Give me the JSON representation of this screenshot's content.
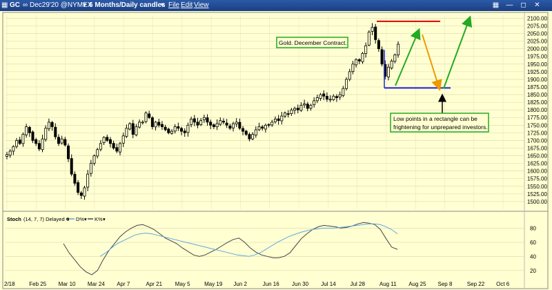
{
  "window": {
    "symbol": "GC",
    "infinity": "∞",
    "contract": "Dec29'20 @NYMEX",
    "period": "6 Months/Daily candles",
    "menu": [
      "File",
      "Edit",
      "View"
    ],
    "icons": [
      "chart-icon",
      "minimize-icon",
      "maximize-icon",
      "close-icon"
    ]
  },
  "colors": {
    "background": "#ffffd2",
    "candle": "#000000",
    "resistance": "#e00000",
    "support": "#2020e0",
    "green_arrow": "#22aa22",
    "orange_arrow": "#ee9900",
    "stoch_k": "#444444",
    "stoch_d": "#5aa7e0",
    "annotation_border": "#22aa22"
  },
  "chart_data": [
    {
      "type": "candlestick",
      "ylim": [
        1475,
        2110
      ],
      "yticks": [
        1500,
        1525,
        1550,
        1575,
        1600,
        1625,
        1650,
        1675,
        1700,
        1725,
        1750,
        1775,
        1800,
        1825,
        1850,
        1875,
        1900,
        1925,
        1950,
        1975,
        2000,
        2025,
        2050,
        2075,
        2100
      ],
      "ytick_labels": [
        "1500.00",
        "1525.00",
        "1550.00",
        "1575.00",
        "1600.00",
        "1625.00",
        "1650.00",
        "1675.00",
        "1700.00",
        "1725.00",
        "1750.00",
        "1775.00",
        "1800.00",
        "1825.00",
        "1850.00",
        "1875.00",
        "1900.00",
        "1925.00",
        "1950.00",
        "1975.00",
        "2000.00",
        "2025.00",
        "2050.00",
        "2075.00",
        "2100.00"
      ],
      "xticks": [
        "2/18",
        "Feb 25",
        "Mar 10",
        "Mar 24",
        "Apr 7",
        "Apr 21",
        "May 5",
        "May 19",
        "Jun 2",
        "Jun 16",
        "Jun 30",
        "Jul 14",
        "Jul 28",
        "Aug 11",
        "Aug 25",
        "Sep 8",
        "Sep 22",
        "Oct 6"
      ],
      "closes": [
        1654,
        1665,
        1680,
        1700,
        1690,
        1720,
        1745,
        1725,
        1700,
        1690,
        1672,
        1705,
        1740,
        1760,
        1745,
        1712,
        1690,
        1705,
        1685,
        1640,
        1590,
        1560,
        1530,
        1520,
        1545,
        1590,
        1625,
        1650,
        1670,
        1690,
        1710,
        1700,
        1690,
        1675,
        1665,
        1690,
        1715,
        1740,
        1755,
        1720,
        1745,
        1760,
        1760,
        1790,
        1775,
        1745,
        1760,
        1750,
        1745,
        1735,
        1725,
        1730,
        1745,
        1740,
        1730,
        1725,
        1750,
        1770,
        1760,
        1750,
        1765,
        1775,
        1760,
        1750,
        1745,
        1755,
        1765,
        1760,
        1750,
        1740,
        1755,
        1760,
        1740,
        1730,
        1720,
        1705,
        1720,
        1735,
        1745,
        1740,
        1750,
        1752,
        1760,
        1770,
        1765,
        1780,
        1790,
        1785,
        1800,
        1805,
        1800,
        1815,
        1820,
        1805,
        1815,
        1830,
        1840,
        1850,
        1845,
        1835,
        1835,
        1845,
        1840,
        1850,
        1870,
        1900,
        1925,
        1950,
        1965,
        1960,
        1985,
        2010,
        2055,
        2070,
        2030,
        2000,
        1950,
        1910,
        1940,
        1960,
        1980,
        2015
      ],
      "resistance_level": 2090,
      "support_level": 1872,
      "annotations": [
        "Gold. December Contract.",
        "Low points in a rectangle can be frightening for unprepared investors."
      ]
    },
    {
      "type": "line",
      "name": "Stoch",
      "params": "(14, 7, 7) Delayed",
      "legend": [
        "D%",
        "K%"
      ],
      "ylim": [
        10,
        100
      ],
      "yticks": [
        20,
        40,
        60,
        80
      ],
      "series": [
        {
          "name": "K%",
          "values": [
            58,
            45,
            35,
            25,
            18,
            14,
            20,
            35,
            48,
            58,
            68,
            75,
            80,
            84,
            85,
            82,
            78,
            72,
            66,
            62,
            58,
            52,
            47,
            42,
            40,
            42,
            46,
            50,
            55,
            60,
            64,
            66,
            60,
            52,
            46,
            42,
            40,
            38,
            38,
            40,
            45,
            55,
            65,
            72,
            78,
            82,
            84,
            83,
            82,
            80,
            81,
            83,
            86,
            88,
            87,
            85,
            78,
            65,
            53,
            50
          ]
        },
        {
          "name": "D%",
          "values": [
            40,
            45,
            52,
            58,
            62,
            66,
            70,
            72,
            73,
            72,
            70,
            68,
            66,
            64,
            62,
            60,
            58,
            56,
            54,
            52,
            50,
            48,
            46,
            44,
            42,
            41,
            40,
            42,
            45,
            50,
            55,
            60,
            64,
            68,
            71,
            74,
            76,
            78,
            79,
            80,
            80,
            80,
            81,
            82,
            83,
            84,
            85,
            86,
            86,
            85,
            82,
            78,
            72
          ]
        }
      ]
    }
  ]
}
